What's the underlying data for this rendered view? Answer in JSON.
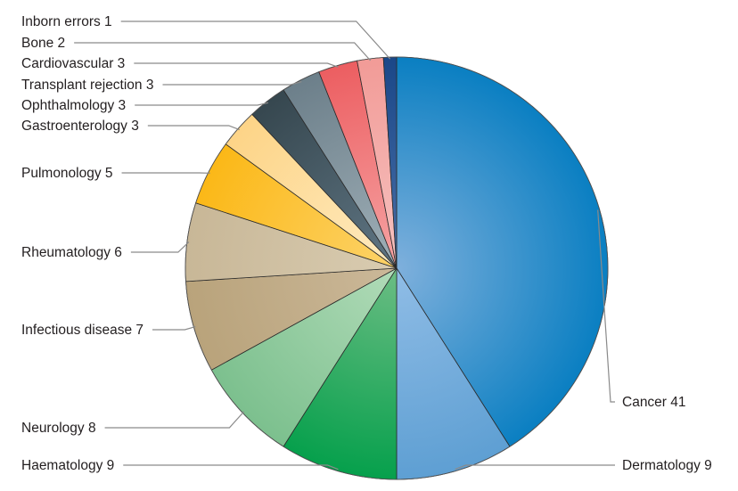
{
  "chart_data": {
    "type": "pie",
    "title": "",
    "start": "top",
    "direction": "clockwise",
    "slices": [
      {
        "label": "Cancer",
        "value": 41,
        "color": "#0a7fc2",
        "color_inner": "#7fb0dc",
        "side": "right"
      },
      {
        "label": "Dermatology",
        "value": 9,
        "color": "#5e9fd3",
        "color_inner": "#90bde6",
        "side": "right"
      },
      {
        "label": "Haematology",
        "value": 9,
        "color": "#06a04c",
        "color_inner": "#6cbd84",
        "side": "left"
      },
      {
        "label": "Neurology",
        "value": 8,
        "color": "#7cc08e",
        "color_inner": "#b1dbb8",
        "side": "left"
      },
      {
        "label": "Infectious disease",
        "value": 7,
        "color": "#b9a37b",
        "color_inner": "#cbb899",
        "side": "left"
      },
      {
        "label": "Rheumatology",
        "value": 6,
        "color": "#c8b797",
        "color_inner": "#d9ccb1",
        "side": "left"
      },
      {
        "label": "Pulmonology",
        "value": 5,
        "color": "#fbb817",
        "color_inner": "#fdd36a",
        "side": "left"
      },
      {
        "label": "Gastroenterology",
        "value": 3,
        "color": "#fdd487",
        "color_inner": "#feebc0",
        "side": "left"
      },
      {
        "label": "Ophthalmology",
        "value": 3,
        "color": "#36474f",
        "color_inner": "#607684",
        "side": "left"
      },
      {
        "label": "Transplant rejection",
        "value": 3,
        "color": "#6c7f8a",
        "color_inner": "#a0b0b8",
        "side": "left"
      },
      {
        "label": "Cardiovascular",
        "value": 3,
        "color": "#ec5e61",
        "color_inner": "#f6a4a4",
        "side": "left"
      },
      {
        "label": "Bone",
        "value": 2,
        "color": "#f29b97",
        "color_inner": "#f6c2c0",
        "side": "left"
      },
      {
        "label": "Inborn errors",
        "value": 1,
        "color": "#1a4788",
        "color_inner": "#4a70a8",
        "side": "left"
      }
    ]
  }
}
